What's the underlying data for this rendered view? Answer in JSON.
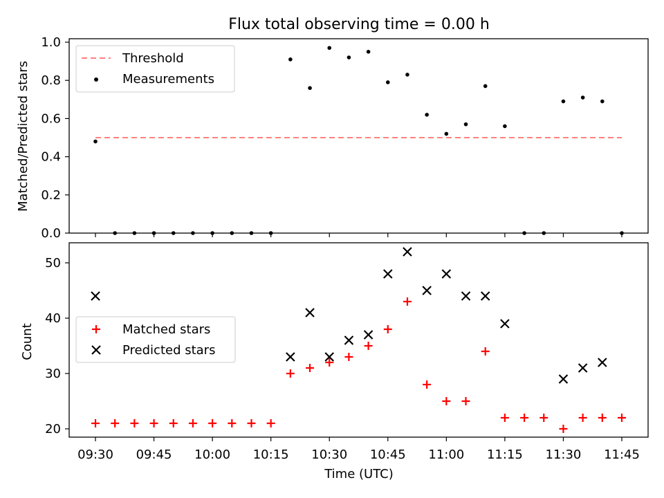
{
  "title": "Flux total observing time = 0.00 h",
  "colors": {
    "threshold": "#ff8080",
    "measurements": "#000000",
    "matched": "#ff0000",
    "predicted": "#000000"
  },
  "chart_data": [
    {
      "type": "scatter",
      "ylabel": "Matched/Predicted stars",
      "ylim": [
        0.0,
        1.0
      ],
      "yticks": [
        "0.0",
        "0.2",
        "0.4",
        "0.6",
        "0.8",
        "1.0"
      ],
      "legend": {
        "placement": "top-left",
        "entries": [
          "Threshold",
          "Measurements"
        ]
      },
      "threshold": {
        "name": "Threshold",
        "value": 0.5,
        "x_start": "09:30",
        "x_end": "11:45"
      },
      "series": [
        {
          "name": "Measurements",
          "x": [
            "09:30",
            "09:35",
            "09:40",
            "09:45",
            "09:50",
            "09:55",
            "10:00",
            "10:05",
            "10:10",
            "10:15",
            "10:20",
            "10:25",
            "10:30",
            "10:35",
            "10:40",
            "10:45",
            "10:50",
            "10:55",
            "11:00",
            "11:05",
            "11:10",
            "11:15",
            "11:20",
            "11:25",
            "11:30",
            "11:35",
            "11:40",
            "11:45"
          ],
          "values": [
            0.48,
            0,
            0,
            0,
            0,
            0,
            0,
            0,
            0,
            0,
            0.91,
            0.76,
            0.97,
            0.92,
            0.95,
            0.79,
            0.83,
            0.62,
            0.52,
            0.57,
            0.77,
            0.56,
            0,
            0,
            0.69,
            0.71,
            0.69,
            0
          ]
        }
      ]
    },
    {
      "type": "scatter",
      "xlabel": "Time (UTC)",
      "ylabel": "Count",
      "ylim": [
        18.5,
        53.5
      ],
      "yticks": [
        "20",
        "30",
        "40",
        "50"
      ],
      "xticks": [
        "09:30",
        "09:45",
        "10:00",
        "10:15",
        "10:30",
        "10:45",
        "11:00",
        "11:15",
        "11:30",
        "11:45"
      ],
      "legend": {
        "placement": "center-left",
        "entries": [
          "Matched stars",
          "Predicted stars"
        ]
      },
      "series": [
        {
          "name": "Matched stars",
          "marker": "+",
          "x": [
            "09:30",
            "09:35",
            "09:40",
            "09:45",
            "09:50",
            "09:55",
            "10:00",
            "10:05",
            "10:10",
            "10:15",
            "10:20",
            "10:25",
            "10:30",
            "10:35",
            "10:40",
            "10:45",
            "10:50",
            "10:55",
            "11:00",
            "11:05",
            "11:10",
            "11:15",
            "11:20",
            "11:25",
            "11:30",
            "11:35",
            "11:40",
            "11:45"
          ],
          "values": [
            21,
            21,
            21,
            21,
            21,
            21,
            21,
            21,
            21,
            21,
            30,
            31,
            32,
            33,
            35,
            38,
            43,
            28,
            25,
            25,
            34,
            22,
            22,
            22,
            20,
            22,
            22,
            22
          ]
        },
        {
          "name": "Predicted stars",
          "marker": "x",
          "x": [
            "09:30",
            "10:20",
            "10:25",
            "10:30",
            "10:35",
            "10:40",
            "10:45",
            "10:50",
            "10:55",
            "11:00",
            "11:05",
            "11:10",
            "11:15",
            "11:30",
            "11:35",
            "11:40"
          ],
          "values": [
            44,
            33,
            41,
            33,
            36,
            37,
            48,
            52,
            45,
            48,
            44,
            44,
            39,
            29,
            31,
            32
          ]
        }
      ]
    }
  ]
}
